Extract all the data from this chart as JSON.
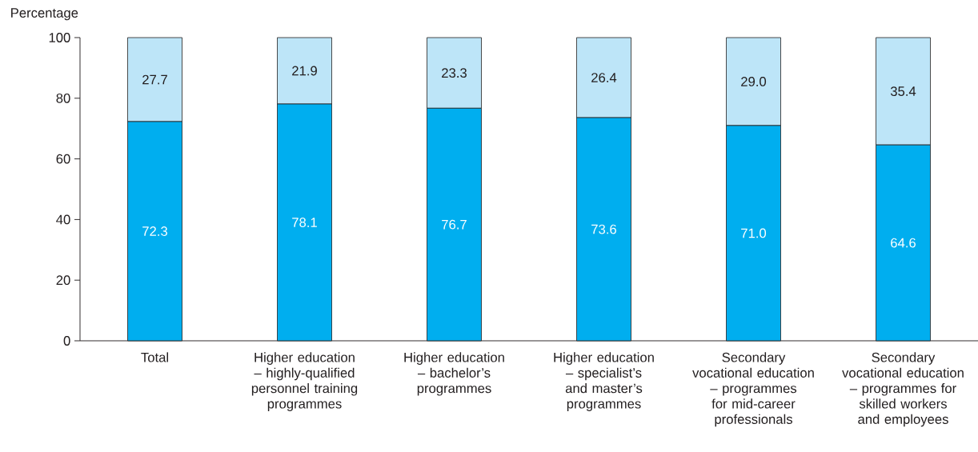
{
  "chart_data": {
    "type": "bar",
    "stacked": true,
    "ylabel": "Percentage",
    "categories": [
      "Total",
      "Higher education – highly-qualified personnel training programmes",
      "Higher education – bachelor’s programmes",
      "Higher education – specialist’s and master’s programmes",
      "Secondary vocational education – programmes for mid-career professionals",
      "Secondary vocational education – programmes for skilled workers and employees"
    ],
    "series": [
      {
        "color": "#00aeef",
        "values": [
          72.3,
          78.1,
          76.7,
          73.6,
          71.0,
          64.6
        ],
        "value_labels": [
          "72.3",
          "78.1",
          "76.7",
          "73.6",
          "71.0",
          "64.6"
        ]
      },
      {
        "color": "#bde5f8",
        "values": [
          27.7,
          21.9,
          23.3,
          26.4,
          29.0,
          35.4
        ],
        "value_labels": [
          "27.7",
          "21.9",
          "23.3",
          "26.4",
          "29.0",
          "35.4"
        ]
      }
    ],
    "ylim": [
      0,
      100
    ],
    "yticks": [
      0,
      20,
      40,
      60,
      80,
      100
    ]
  }
}
